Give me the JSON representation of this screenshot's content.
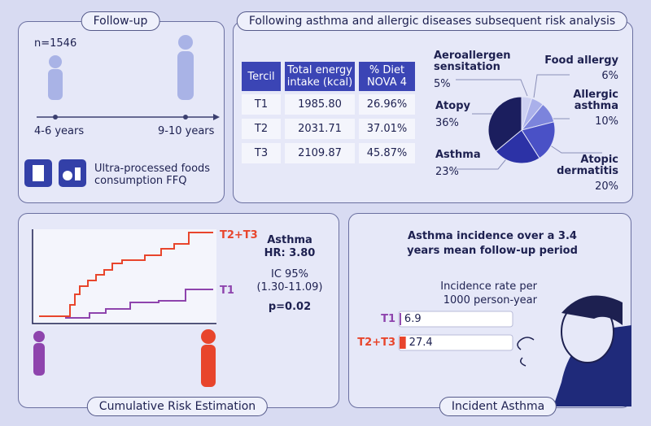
{
  "follow_up": {
    "title": "Follow-up",
    "n": "n=1546",
    "ages": [
      "4-6 years",
      "9-10 years"
    ],
    "ffq": "Ultra-processed foods consumption FFQ"
  },
  "risk_analysis": {
    "title": "Following asthma and allergic diseases subsequent risk analysis",
    "table": {
      "header": [
        "Tercil",
        "Total energy intake (kcal)",
        "% Diet NOVA 4"
      ],
      "rows": [
        [
          "T1",
          "1985.80",
          "26.96%"
        ],
        [
          "T2",
          "2031.71",
          "37.01%"
        ],
        [
          "T3",
          "2109.87",
          "45.87%"
        ]
      ]
    }
  },
  "cumulative": {
    "title": "Cumulative Risk Estimation",
    "curves": [
      "T2+T3",
      "T1"
    ],
    "outcome": "Asthma",
    "hr": "HR: 3.80",
    "ci_label": "IC 95%",
    "ci": "(1.30-11.09)",
    "p": "p=0.02"
  },
  "incident": {
    "title": "Incident Asthma"
  },
  "chart_data": [
    {
      "type": "pie",
      "categories": [
        "Aeroallergen sensitation",
        "Food allergy",
        "Allergic asthma",
        "Atopic dermatitis",
        "Asthma",
        "Atopy"
      ],
      "values": [
        5,
        6,
        10,
        20,
        23,
        36
      ],
      "value_labels": [
        "5%",
        "6%",
        "10%",
        "20%",
        "23%",
        "36%"
      ],
      "colors": [
        "#cdd1f2",
        "#aab0ea",
        "#7c84dc",
        "#4a51c6",
        "#2c32a6",
        "#1b1e5e"
      ]
    },
    {
      "type": "bar",
      "title": "Asthma incidence over a 3.4 years mean follow-up period",
      "axis_label": "Incidence rate per 1000 person-year",
      "categories": [
        "T1",
        "T2+T3"
      ],
      "values": [
        6.9,
        27.4
      ],
      "colors": [
        "#8e44ad",
        "#e8452c"
      ]
    }
  ]
}
